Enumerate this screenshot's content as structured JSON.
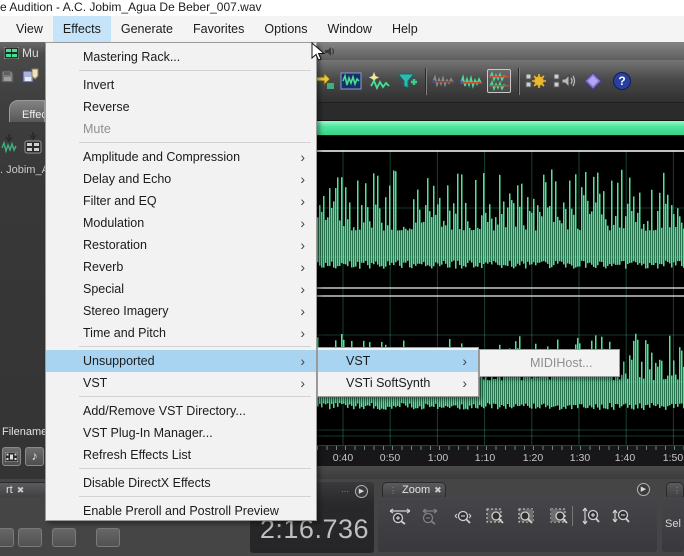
{
  "window": {
    "title": "e Audition - A.C. Jobim_Agua De Beber_007.wav"
  },
  "menubar": {
    "active": "Effects",
    "items": [
      "View",
      "Effects",
      "Generate",
      "Favorites",
      "Options",
      "Window",
      "Help"
    ]
  },
  "effects_menu": {
    "items": [
      {
        "label": "Mastering Rack..."
      },
      {
        "label": "Invert"
      },
      {
        "label": "Reverse"
      },
      {
        "label": "Mute",
        "disabled": true
      },
      {
        "label": "Amplitude and Compression",
        "submenu": true
      },
      {
        "label": "Delay and Echo",
        "submenu": true
      },
      {
        "label": "Filter and EQ",
        "submenu": true
      },
      {
        "label": "Modulation",
        "submenu": true
      },
      {
        "label": "Restoration",
        "submenu": true
      },
      {
        "label": "Reverb",
        "submenu": true
      },
      {
        "label": "Special",
        "submenu": true
      },
      {
        "label": "Stereo Imagery",
        "submenu": true
      },
      {
        "label": "Time and Pitch",
        "submenu": true
      },
      {
        "label": "Unsupported",
        "submenu": true,
        "highlighted": true
      },
      {
        "label": "VST",
        "submenu": true
      },
      {
        "label": "Add/Remove VST Directory..."
      },
      {
        "label": "VST Plug-In Manager..."
      },
      {
        "label": "Refresh Effects List"
      },
      {
        "label": "Disable DirectX Effects"
      },
      {
        "label": "Enable Preroll and Postroll Preview"
      }
    ]
  },
  "unsupported_submenu": {
    "items": [
      {
        "label": "VST",
        "submenu": true,
        "highlighted": true
      },
      {
        "label": "VSTi SoftSynth",
        "submenu": true
      }
    ]
  },
  "vst_submenu": {
    "items": [
      {
        "label": "MIDIHost...",
        "disabled": true
      }
    ]
  },
  "left_dock": {
    "multitrack_label": "Mu",
    "effects_tab_label": "Effect",
    "file_item_label": ". Jobim_A",
    "filename_header": "Filename",
    "transport_tab_label": "rt"
  },
  "timeline": {
    "ticks": [
      "0:40",
      "0:50",
      "1:00",
      "1:10",
      "1:20",
      "1:30",
      "1:40",
      "1:50"
    ]
  },
  "transport_panel": {
    "time_display": "2:16.736"
  },
  "zoom_panel": {
    "tab_label": "Zoom"
  },
  "selection_panel": {
    "label": "Sel"
  },
  "colors": {
    "waveform_green": "#4ce69c",
    "menu_highlight": "#a8d4f2",
    "menubar_highlight": "#c6e4f9",
    "help_blue": "#2b3f9e"
  }
}
